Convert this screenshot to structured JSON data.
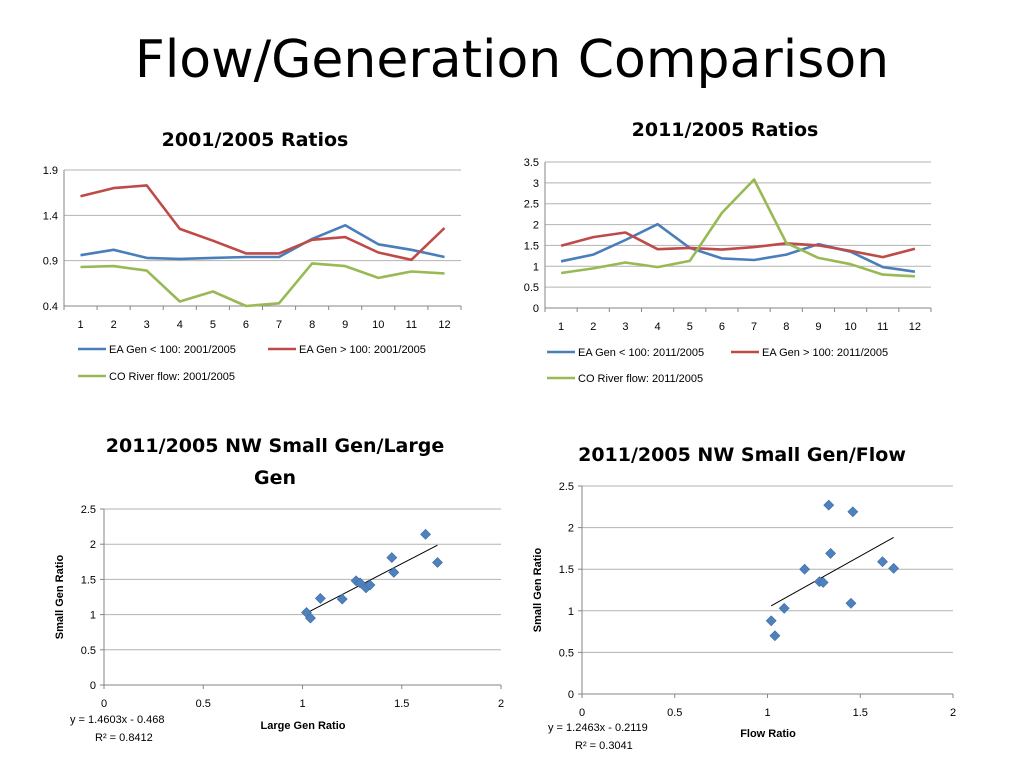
{
  "slide": {
    "title": "Flow/Generation Comparison"
  },
  "colors": {
    "blue": "#4a7ebb",
    "red": "#be4b48",
    "green": "#98b954",
    "grid": "#b3b3b3",
    "axis": "#868686",
    "marker": "#4f81bd"
  },
  "chart_data": [
    {
      "type": "line",
      "title": "2001/2005 Ratios",
      "categories": [
        "1",
        "2",
        "3",
        "4",
        "5",
        "6",
        "7",
        "8",
        "9",
        "10",
        "11",
        "12"
      ],
      "ylim": [
        0.4,
        1.9
      ],
      "yticks": [
        "0.4",
        "0.9",
        "1.4",
        "1.9"
      ],
      "grid": true,
      "legend": "bottom",
      "series": [
        {
          "name": "EA Gen < 100: 2001/2005",
          "color": "#4a7ebb",
          "values": [
            0.96,
            1.02,
            0.93,
            0.92,
            0.93,
            0.94,
            0.94,
            1.14,
            1.29,
            1.08,
            1.02,
            0.94
          ]
        },
        {
          "name": "EA Gen > 100: 2001/2005",
          "color": "#be4b48",
          "values": [
            1.61,
            1.7,
            1.73,
            1.25,
            1.12,
            0.98,
            0.98,
            1.13,
            1.16,
            0.99,
            0.91,
            1.26
          ]
        },
        {
          "name": "CO River flow: 2001/2005",
          "color": "#98b954",
          "values": [
            0.83,
            0.84,
            0.79,
            0.45,
            0.56,
            0.4,
            0.43,
            0.87,
            0.84,
            0.71,
            0.78,
            0.76
          ]
        }
      ]
    },
    {
      "type": "line",
      "title": "2011/2005 Ratios",
      "categories": [
        "1",
        "2",
        "3",
        "4",
        "5",
        "6",
        "7",
        "8",
        "9",
        "10",
        "11",
        "12"
      ],
      "ylim": [
        0,
        3.5
      ],
      "yticks": [
        "0",
        "0.5",
        "1",
        "1.5",
        "2",
        "2.5",
        "3",
        "3.5"
      ],
      "grid": true,
      "legend": "bottom",
      "series": [
        {
          "name": "EA Gen < 100: 2011/2005",
          "color": "#4a7ebb",
          "values": [
            1.12,
            1.28,
            1.63,
            2.01,
            1.44,
            1.19,
            1.15,
            1.28,
            1.53,
            1.35,
            0.98,
            0.87
          ]
        },
        {
          "name": "EA Gen > 100: 2011/2005",
          "color": "#be4b48",
          "values": [
            1.49,
            1.7,
            1.81,
            1.41,
            1.44,
            1.4,
            1.46,
            1.55,
            1.5,
            1.37,
            1.22,
            1.42
          ]
        },
        {
          "name": "CO River flow: 2011/2005",
          "color": "#98b954",
          "values": [
            0.84,
            0.95,
            1.09,
            0.98,
            1.13,
            2.28,
            3.08,
            1.56,
            1.2,
            1.05,
            0.8,
            0.76
          ]
        }
      ]
    },
    {
      "type": "scatter",
      "title_lines": [
        "2011/2005 NW Small Gen/Large",
        "Gen"
      ],
      "xlabel": "Large Gen Ratio",
      "ylabel": "Small Gen Ratio",
      "xlim": [
        0,
        2
      ],
      "ylim": [
        0,
        2.5
      ],
      "xticks": [
        "0",
        "0.5",
        "1",
        "1.5",
        "2"
      ],
      "yticks": [
        "0",
        "0.5",
        "1",
        "1.5",
        "2",
        "2.5"
      ],
      "grid": true,
      "points": [
        [
          1.02,
          1.03
        ],
        [
          1.04,
          0.95
        ],
        [
          1.09,
          1.23
        ],
        [
          1.2,
          1.22
        ],
        [
          1.27,
          1.48
        ],
        [
          1.29,
          1.45
        ],
        [
          1.32,
          1.38
        ],
        [
          1.34,
          1.42
        ],
        [
          1.45,
          1.81
        ],
        [
          1.46,
          1.6
        ],
        [
          1.62,
          2.14
        ],
        [
          1.68,
          1.74
        ]
      ],
      "trendline": {
        "slope": 1.4603,
        "intercept": -0.468,
        "x_range": [
          1.02,
          1.68
        ]
      },
      "equation": "y = 1.4603x - 0.468",
      "r2": "R² = 0.8412"
    },
    {
      "type": "scatter",
      "title_lines": [
        "2011/2005 NW Small Gen/Flow"
      ],
      "xlabel": "Flow Ratio",
      "ylabel": "Small Gen Ratio",
      "xlim": [
        0,
        2
      ],
      "ylim": [
        0,
        2.5
      ],
      "xticks": [
        "0",
        "0.5",
        "1",
        "1.5",
        "2"
      ],
      "yticks": [
        "0",
        "0.5",
        "1",
        "1.5",
        "2",
        "2.5"
      ],
      "grid": true,
      "points": [
        [
          1.02,
          0.88
        ],
        [
          1.04,
          0.7
        ],
        [
          1.09,
          1.03
        ],
        [
          1.2,
          1.5
        ],
        [
          1.28,
          1.35
        ],
        [
          1.3,
          1.34
        ],
        [
          1.33,
          2.27
        ],
        [
          1.34,
          1.69
        ],
        [
          1.45,
          1.09
        ],
        [
          1.46,
          2.19
        ],
        [
          1.62,
          1.59
        ],
        [
          1.68,
          1.51
        ]
      ],
      "trendline": {
        "slope": 1.2463,
        "intercept": -0.2119,
        "x_range": [
          1.02,
          1.68
        ]
      },
      "equation": "y = 1.2463x - 0.2119",
      "r2": "R² = 0.3041"
    }
  ]
}
